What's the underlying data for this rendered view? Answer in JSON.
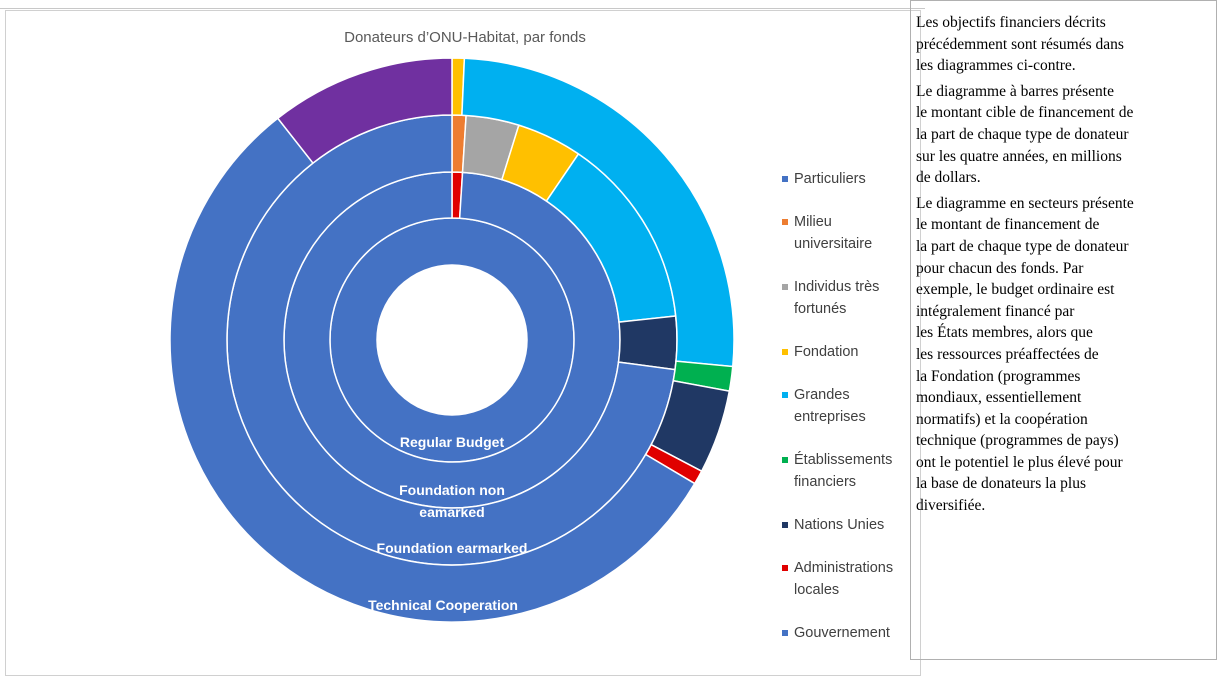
{
  "chart_data": {
    "type": "multi-donut",
    "title": "Donateurs d’ONU-Habitat, par fonds",
    "categories": [
      "Particuliers",
      "Milieu universitaire",
      "Individus très fortunés",
      "Fondation",
      "Grandes entreprises",
      "Établissements financiers",
      "Nations Unies",
      "Administrations locales",
      "Gouvernement",
      null
    ],
    "colors": [
      "#4472c4",
      "#ed7d31",
      "#a5a5a5",
      "#ffc000",
      "#00b0f0",
      "#00b050",
      "#203864",
      "#e00000",
      "#4472c4",
      "#7030a0"
    ],
    "series": [
      {
        "name": "Regular Budget",
        "values": [
          0,
          0,
          0,
          0,
          0,
          0,
          0,
          0,
          100,
          0
        ]
      },
      {
        "name": "Foundation non eamarked",
        "values": [
          0,
          0,
          0,
          0,
          0,
          0,
          0,
          1,
          99,
          0
        ]
      },
      {
        "name": "Foundation earmarked",
        "values": [
          0,
          1,
          3.8,
          4.7,
          13.8,
          0,
          3.8,
          0,
          72.9,
          0
        ]
      },
      {
        "name": "Technical Cooperation",
        "values": [
          0,
          0,
          0,
          0.7,
          25.8,
          1.4,
          4.8,
          0.8,
          55.9,
          10.6
        ]
      }
    ]
  },
  "text_panel": [
    [
      "Les objectifs financiers décrits",
      "précédemment sont résumés dans",
      "les diagrammes ci-contre."
    ],
    [
      "Le diagramme à barres présente",
      "le montant cible de financement de",
      "la part de chaque type de donateur",
      "sur les quatre années, en millions",
      "de dollars."
    ],
    [
      "Le diagramme en secteurs présente",
      "le montant de financement de",
      "la part de chaque type de donateur",
      "pour chacun des fonds. Par",
      "exemple, le budget ordinaire est",
      "intégralement financé par",
      "les États membres, alors que",
      "les ressources préaffectées de",
      "la Fondation (programmes",
      "mondiaux, essentiellement",
      "normatifs) et la coopération",
      "technique (programmes de pays)",
      "ont le potentiel le plus élevé pour",
      "la base de donateurs la plus",
      "diversifiée."
    ]
  ]
}
